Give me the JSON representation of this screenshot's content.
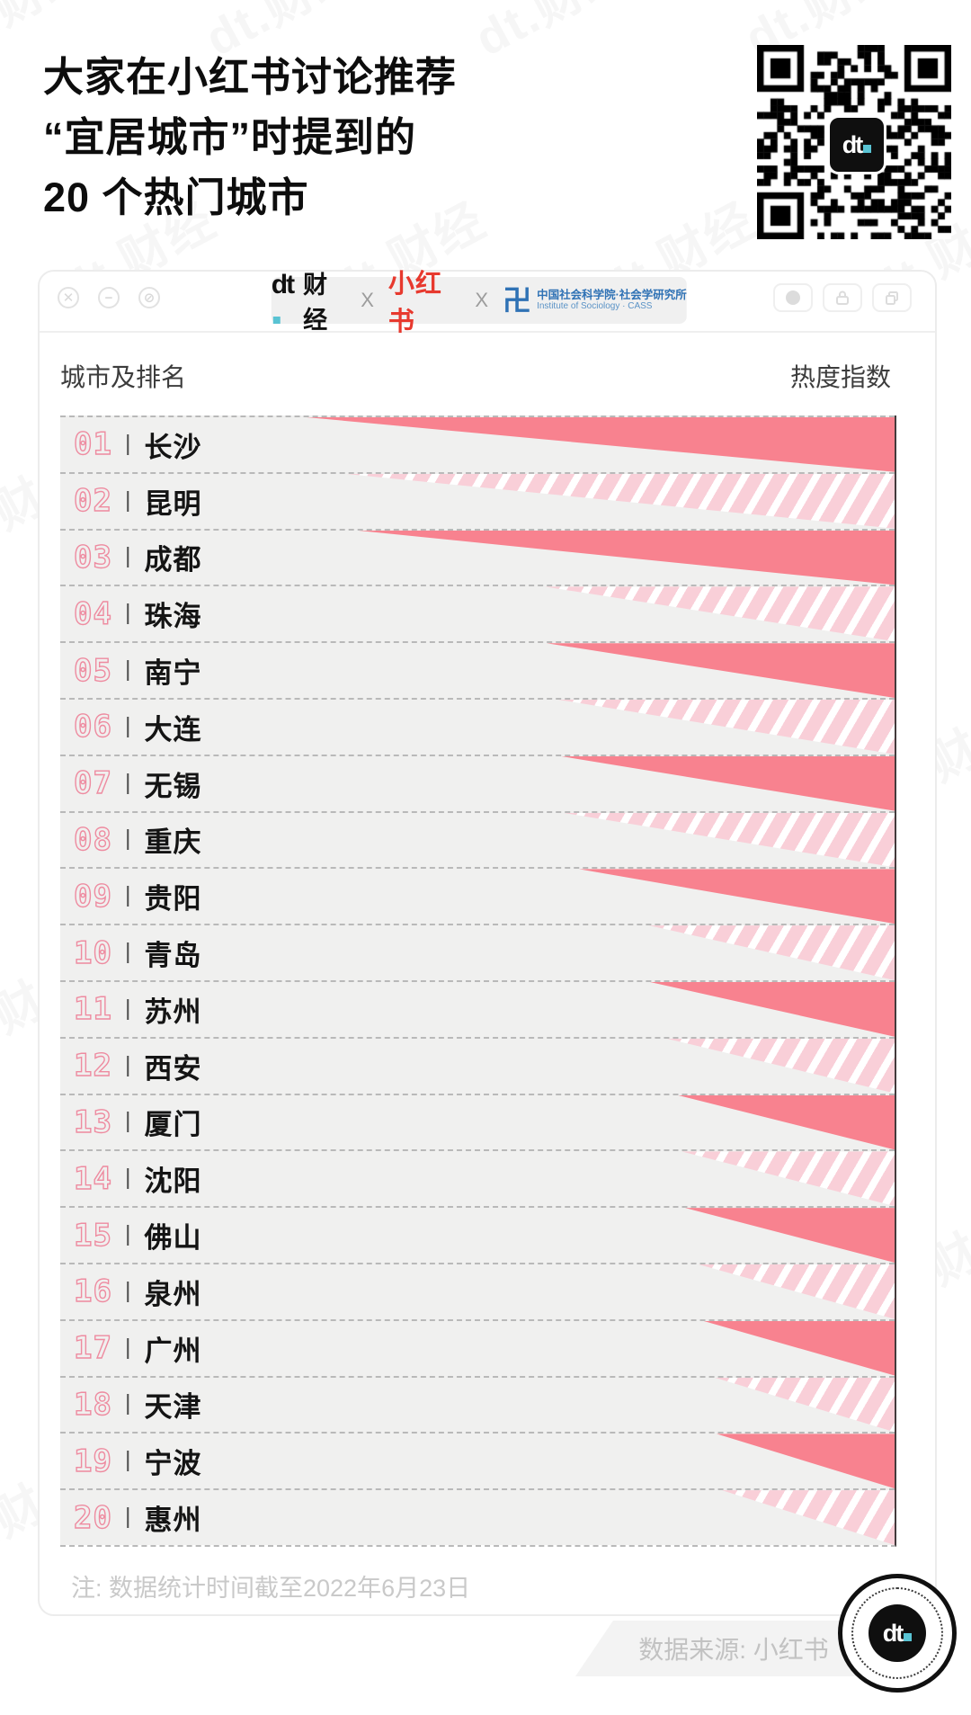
{
  "page": {
    "title_lines": [
      "大家在小红书讨论推荐",
      "“宜居城市”时提到的",
      "20 个热门城市"
    ],
    "watermark_text": "dt.财经"
  },
  "window": {
    "controls_left": [
      "close",
      "minimize",
      "block"
    ],
    "controls_right": [
      "record",
      "lock",
      "windows"
    ],
    "header": {
      "dt_glyph": "dt",
      "dt_cn": "财经",
      "x1": "X",
      "xiaohongshu": "小红书",
      "x2": "X",
      "cass_mark": "卍",
      "cass_cn": "中国社会科学院·社会学研究所",
      "cass_en": "Institute of Sociology · CASS"
    }
  },
  "chart": {
    "col_left": "城市及排名",
    "col_right": "热度指数",
    "note": "注: 数据统计时间截至2022年6月23日",
    "source": "数据来源: 小红书",
    "rows": [
      {
        "rank": "01",
        "city": "长沙",
        "value": 70.5,
        "fill": "solid"
      },
      {
        "rank": "02",
        "city": "昆明",
        "value": 66.0,
        "fill": "hatch"
      },
      {
        "rank": "03",
        "city": "成都",
        "value": 64.7,
        "fill": "solid"
      },
      {
        "rank": "04",
        "city": "珠海",
        "value": 41.9,
        "fill": "hatch"
      },
      {
        "rank": "05",
        "city": "南宁",
        "value": 41.7,
        "fill": "solid"
      },
      {
        "rank": "06",
        "city": "大连",
        "value": 40.3,
        "fill": "hatch"
      },
      {
        "rank": "07",
        "city": "无锡",
        "value": 40.1,
        "fill": "solid"
      },
      {
        "rank": "08",
        "city": "重庆",
        "value": 39.9,
        "fill": "hatch"
      },
      {
        "rank": "09",
        "city": "贵阳",
        "value": 37.8,
        "fill": "solid"
      },
      {
        "rank": "10",
        "city": "青岛",
        "value": 29.4,
        "fill": "hatch"
      },
      {
        "rank": "11",
        "city": "苏州",
        "value": 29.3,
        "fill": "solid"
      },
      {
        "rank": "12",
        "city": "西安",
        "value": 27.4,
        "fill": "hatch"
      },
      {
        "rank": "13",
        "city": "厦门",
        "value": 26.1,
        "fill": "solid"
      },
      {
        "rank": "14",
        "city": "沈阳",
        "value": 25.5,
        "fill": "hatch"
      },
      {
        "rank": "15",
        "city": "佛山",
        "value": 25.1,
        "fill": "solid"
      },
      {
        "rank": "16",
        "city": "泉州",
        "value": 23.5,
        "fill": "hatch"
      },
      {
        "rank": "17",
        "city": "广州",
        "value": 23.0,
        "fill": "solid"
      },
      {
        "rank": "18",
        "city": "天津",
        "value": 21.7,
        "fill": "hatch"
      },
      {
        "rank": "19",
        "city": "宁波",
        "value": 21.3,
        "fill": "solid"
      },
      {
        "rank": "20",
        "city": "惠州",
        "value": 20.7,
        "fill": "hatch"
      }
    ]
  },
  "colors": {
    "bar_solid": "#f8828f",
    "bar_hatch_base": "#f9cfd8",
    "row_bg": "#f0f0ef",
    "rank_outline": "#ee8ba0",
    "xiaohongshu_red": "#e7392e",
    "cass_blue": "#2f72b5",
    "dt_teal": "#59c3d3",
    "note_gray": "#c9c9c9"
  },
  "chart_data": {
    "type": "bar",
    "orientation": "horizontal",
    "title": "大家在小红书讨论推荐“宜居城市”时提到的 20 个热门城市",
    "xlabel": "城市及排名",
    "ylabel": "热度指数",
    "categories": [
      "长沙",
      "昆明",
      "成都",
      "珠海",
      "南宁",
      "大连",
      "无锡",
      "重庆",
      "贵阳",
      "青岛",
      "苏州",
      "西安",
      "厦门",
      "沈阳",
      "佛山",
      "泉州",
      "广州",
      "天津",
      "宁波",
      "惠州"
    ],
    "values": [
      70.5,
      66.0,
      64.7,
      41.9,
      41.7,
      40.3,
      40.1,
      39.9,
      37.8,
      29.4,
      29.3,
      27.4,
      26.1,
      25.5,
      25.1,
      23.5,
      23.0,
      21.7,
      21.3,
      20.7
    ],
    "value_unit": "相对热度指数(未标注刻度, 按条长估算, 0-100)",
    "xlim": [
      0,
      100
    ],
    "grid": false,
    "legend": false,
    "note": "注: 数据统计时间截至2022年6月23日",
    "source": "数据来源: 小红书"
  }
}
